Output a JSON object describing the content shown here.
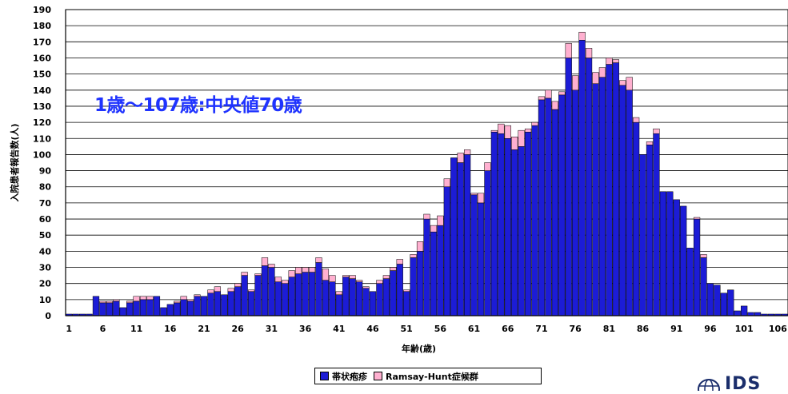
{
  "annotation": "1歳〜107歳:中央値70歳",
  "colors": {
    "shingles": "#1c1cd6",
    "ramsay": "#ffb0d0",
    "background": "#ffffff",
    "plot_area": "#ffffff",
    "annotation": "#1f33ff"
  },
  "chart_data": {
    "type": "bar",
    "stacked": true,
    "title": "",
    "xlabel": "年齢(歳)",
    "ylabel": "入院患者報告数(人)",
    "ylim": [
      0,
      190
    ],
    "yticks": [
      0,
      10,
      20,
      30,
      40,
      50,
      60,
      70,
      80,
      90,
      100,
      110,
      120,
      130,
      140,
      150,
      160,
      170,
      180,
      190
    ],
    "x_tick_labels": [
      "1",
      "6",
      "11",
      "16",
      "21",
      "26",
      "31",
      "36",
      "41",
      "46",
      "51",
      "56",
      "61",
      "66",
      "71",
      "76",
      "81",
      "86",
      "91",
      "96",
      "101",
      "106"
    ],
    "grid": "horizontal",
    "legend_position": "bottom-center",
    "x_start": 1,
    "x_end": 107,
    "series": [
      {
        "name": "帯状疱疹",
        "values": [
          1,
          1,
          1,
          1,
          12,
          8,
          8,
          9,
          5,
          8,
          9,
          10,
          10,
          12,
          5,
          7,
          8,
          10,
          9,
          12,
          12,
          14,
          15,
          13,
          15,
          18,
          25,
          15,
          25,
          31,
          30,
          21,
          20,
          24,
          26,
          27,
          27,
          33,
          22,
          21,
          13,
          24,
          23,
          21,
          17,
          15,
          20,
          23,
          28,
          32,
          15,
          36,
          40,
          60,
          52,
          56,
          80,
          98,
          95,
          100,
          75,
          70,
          90,
          114,
          113,
          110,
          103,
          105,
          114,
          118,
          134,
          135,
          128,
          137,
          160,
          140,
          171,
          160,
          144,
          148,
          156,
          157,
          143,
          140,
          120,
          100,
          106,
          113,
          77,
          77,
          72,
          68,
          42,
          60,
          36,
          20,
          19,
          14,
          16,
          3,
          6,
          2,
          2,
          1,
          1,
          1,
          1
        ]
      },
      {
        "name": "Ramsay-Hunt症候群",
        "values": [
          0,
          0,
          0,
          0,
          0,
          1,
          1,
          1,
          0,
          1,
          3,
          2,
          2,
          0,
          0,
          0,
          1,
          2,
          1,
          1,
          0,
          2,
          3,
          0,
          2,
          2,
          2,
          1,
          1,
          5,
          2,
          3,
          2,
          4,
          4,
          3,
          3,
          3,
          7,
          4,
          2,
          1,
          2,
          1,
          1,
          0,
          2,
          2,
          2,
          3,
          1,
          2,
          6,
          3,
          4,
          6,
          5,
          0,
          6,
          3,
          1,
          6,
          5,
          1,
          6,
          8,
          8,
          10,
          2,
          2,
          2,
          5,
          5,
          2,
          9,
          9,
          5,
          6,
          7,
          6,
          4,
          2,
          3,
          8,
          3,
          0,
          2,
          3,
          0,
          0,
          0,
          0,
          0,
          1,
          2,
          0,
          0,
          0,
          0,
          0,
          0,
          0,
          0,
          0,
          0,
          0,
          0
        ]
      }
    ]
  },
  "legend": [
    {
      "label": "帯状疱疹"
    },
    {
      "label": "Ramsay-Hunt症候群"
    }
  ],
  "logo": {
    "text": "IDS",
    "icon": "globe-icon"
  }
}
